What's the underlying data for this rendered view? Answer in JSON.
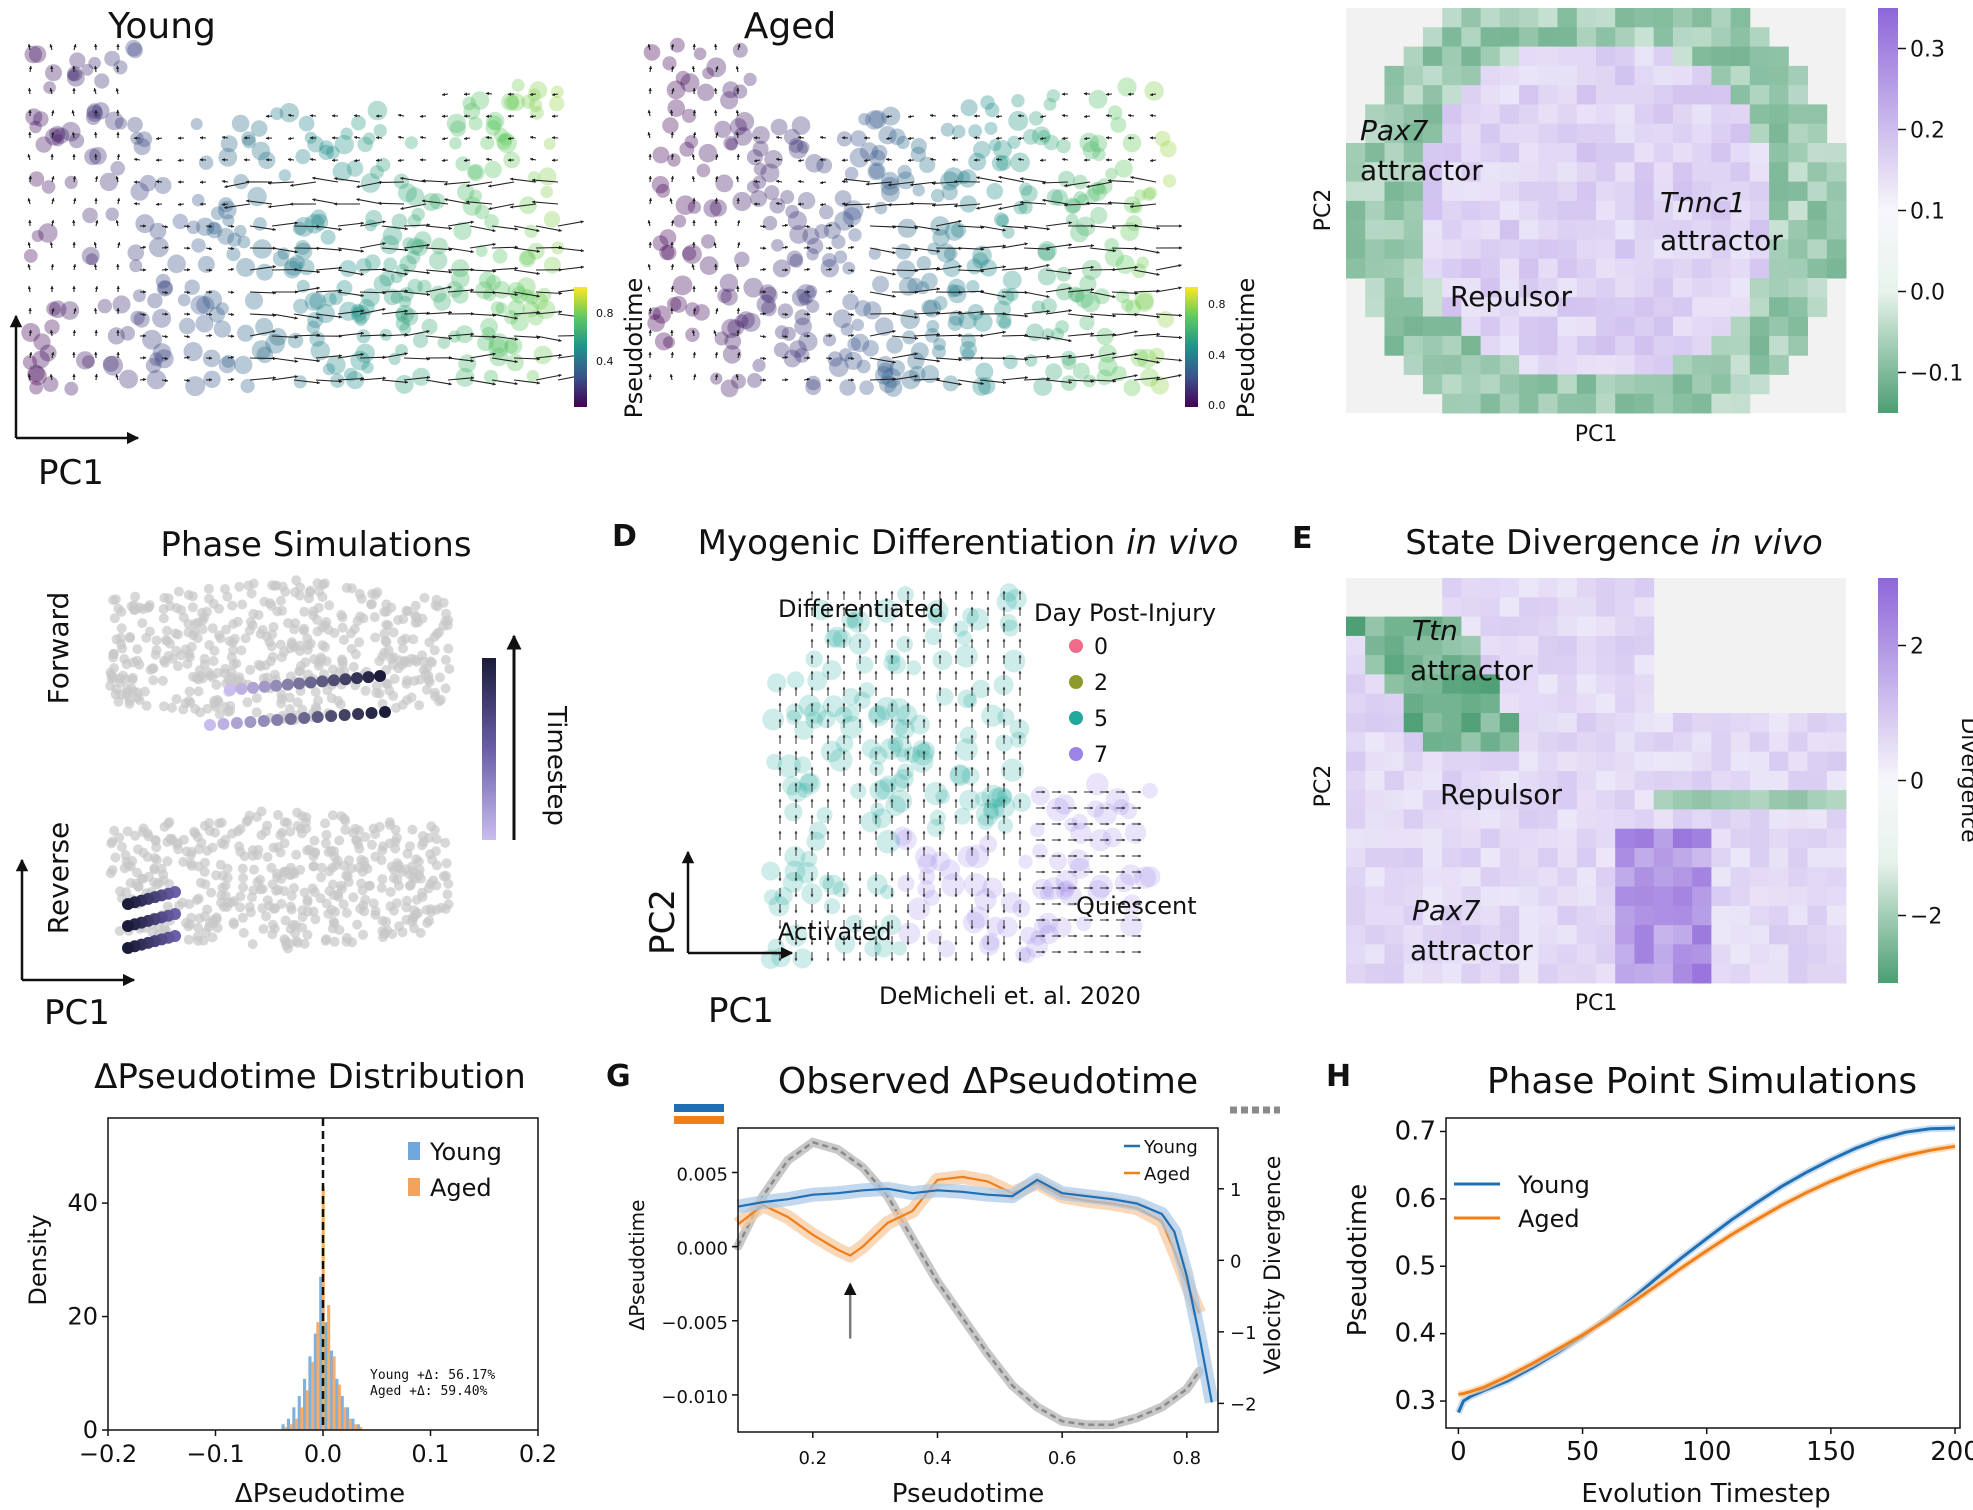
{
  "panel_letters": {
    "d": "D",
    "e": "E",
    "g": "G",
    "h": "H"
  },
  "pca_axes": {
    "pc1": "PC1",
    "pc2": "PC2"
  },
  "colorbar_label": "Pseudotime",
  "colors": {
    "purple": "#8e66d9",
    "green": "#4c9e72",
    "blue": "#1f6fb4",
    "orange": "#f07f18",
    "grey": "#7a7a7a",
    "viridis": [
      "#440154",
      "#3b528b",
      "#21918c",
      "#5ec962",
      "#fde725"
    ]
  },
  "chart_data": [
    {
      "type": "scatter",
      "id": "velocity-young",
      "title": "Young",
      "colorbar": {
        "label": "Pseudotime",
        "ticks": [
          "0.4",
          "0.8"
        ]
      },
      "xlabel": "PC1",
      "ylabel": "PC2"
    },
    {
      "type": "scatter",
      "id": "velocity-aged",
      "title": "Aged",
      "colorbar": {
        "label": "Pseudotime",
        "ticks": [
          "0.0",
          "0.4",
          "0.8"
        ]
      },
      "xlabel": "PC1",
      "ylabel": "PC2"
    },
    {
      "type": "heatmap",
      "id": "divergence-top",
      "xlabel": "PC1",
      "ylabel": "PC2",
      "annotations": {
        "pax7": "Pax7",
        "pax7_sub": "attractor",
        "tnnc1": "Tnnc1",
        "tnnc1_sub": "attractor",
        "repulsor": "Repulsor"
      },
      "colorbar": {
        "ticks": [
          "0.3",
          "0.2",
          "0.1",
          "0.0",
          "−0.1"
        ],
        "range": [
          -0.1,
          0.3
        ]
      }
    },
    {
      "type": "scatter",
      "id": "phase-simulations",
      "title": "Phase Simulations",
      "row_labels": {
        "forward": "Forward",
        "reverse": "Reverse"
      },
      "colorbar": {
        "label": "Timestep"
      },
      "xlabel": "PC1",
      "ylabel": "PC2"
    },
    {
      "type": "scatter",
      "id": "myogenic-in-vivo",
      "title_main": "Myogenic Differentiation ",
      "title_italic": "in vivo",
      "legend_title": "Day Post-Injury",
      "legend": [
        {
          "label": "0",
          "color": "#f06a8a"
        },
        {
          "label": "2",
          "color": "#8f9a2a"
        },
        {
          "label": "5",
          "color": "#22a99c"
        },
        {
          "label": "7",
          "color": "#9b83e8"
        }
      ],
      "annotations": {
        "differentiated": "Differentiated",
        "activated": "Activated",
        "quiescent": "Quiescent"
      },
      "citation": "DeMicheli et. al. 2020",
      "xlabel": "PC1",
      "ylabel": "PC2"
    },
    {
      "type": "heatmap",
      "id": "state-divergence",
      "title_main": "State Divergence ",
      "title_italic": "in vivo",
      "annotations": {
        "ttn": "Ttn",
        "ttn_sub": "attractor",
        "repulsor": "Repulsor",
        "pax7": "Pax7",
        "pax7_sub": "attractor"
      },
      "colorbar": {
        "label": "Divergence",
        "ticks": [
          "2",
          "0",
          "−2"
        ],
        "range": [
          -3.5,
          3.5
        ]
      },
      "xlabel": "PC1",
      "ylabel": "PC2"
    },
    {
      "type": "bar",
      "id": "delta-pseudotime-distribution",
      "title": "ΔPseudotime Distribution",
      "xlabel": "ΔPseudotime",
      "ylabel": "Density",
      "xlim": [
        -0.2,
        0.2
      ],
      "ylim": [
        0,
        55
      ],
      "xticks": [
        "−0.2",
        "−0.1",
        "0.0",
        "0.1",
        "0.2"
      ],
      "yticks": [
        0,
        20,
        40
      ],
      "bin_centers": [
        -0.035,
        -0.03,
        -0.025,
        -0.02,
        -0.015,
        -0.01,
        -0.005,
        0.0,
        0.005,
        0.01,
        0.015,
        0.02,
        0.025,
        0.03,
        0.035
      ],
      "series": [
        {
          "name": "Young",
          "color": "#6fa8dc",
          "values": [
            1,
            2,
            4,
            6,
            9,
            13,
            17,
            27,
            19,
            14,
            9,
            6,
            4,
            2,
            1
          ]
        },
        {
          "name": "Aged",
          "color": "#f5a35a",
          "values": [
            0.5,
            1,
            2,
            4,
            7,
            12,
            19,
            43,
            22,
            13,
            8,
            4,
            2,
            1,
            0.5
          ]
        }
      ],
      "annotation": {
        "young": "Young +Δ: 56.17%",
        "aged": "Aged  +Δ: 59.40%"
      }
    },
    {
      "type": "line",
      "id": "observed-delta-pseudotime",
      "title": "Observed ΔPseudotime",
      "xlabel": "Pseudotime",
      "ylabel": "ΔPseudotime",
      "y2label": "Velocity Divergence",
      "xlim": [
        0.08,
        0.85
      ],
      "ylim": [
        -0.0125,
        0.008
      ],
      "y2lim": [
        -2.4,
        1.85
      ],
      "xticks": [
        "0.2",
        "0.4",
        "0.6",
        "0.8"
      ],
      "yticks": [
        "0.005",
        "0.000",
        "−0.005",
        "−0.010"
      ],
      "y2ticks": [
        "1",
        "0",
        "−1",
        "−2"
      ],
      "legend": [
        "Young",
        "Aged"
      ],
      "series": [
        {
          "name": "Young",
          "color": "#1f6fb4",
          "x": [
            0.08,
            0.12,
            0.16,
            0.2,
            0.24,
            0.28,
            0.32,
            0.36,
            0.4,
            0.44,
            0.48,
            0.52,
            0.56,
            0.6,
            0.64,
            0.68,
            0.72,
            0.76,
            0.78,
            0.8,
            0.82,
            0.84
          ],
          "y": [
            0.0027,
            0.003,
            0.0032,
            0.0035,
            0.0036,
            0.0038,
            0.0039,
            0.0036,
            0.0038,
            0.0037,
            0.0035,
            0.0034,
            0.0045,
            0.0036,
            0.0034,
            0.0032,
            0.0029,
            0.0022,
            0.001,
            -0.002,
            -0.006,
            -0.0105
          ]
        },
        {
          "name": "Aged",
          "color": "#f07f18",
          "x": [
            0.08,
            0.12,
            0.16,
            0.2,
            0.24,
            0.26,
            0.28,
            0.32,
            0.36,
            0.4,
            0.44,
            0.48,
            0.52,
            0.56,
            0.6,
            0.64,
            0.68,
            0.72,
            0.76,
            0.78,
            0.8,
            0.82
          ],
          "y": [
            0.0015,
            0.0028,
            0.002,
            0.0008,
            -0.0002,
            -0.0006,
            0.0,
            0.0016,
            0.0024,
            0.0045,
            0.0047,
            0.0044,
            0.0036,
            0.0043,
            0.0034,
            0.0031,
            0.0029,
            0.0026,
            0.0017,
            -0.0003,
            -0.0025,
            -0.0045
          ]
        },
        {
          "name": "Velocity Divergence",
          "color": "#8a8a8a",
          "x": [
            0.08,
            0.12,
            0.16,
            0.2,
            0.24,
            0.28,
            0.32,
            0.36,
            0.4,
            0.44,
            0.48,
            0.52,
            0.56,
            0.6,
            0.64,
            0.68,
            0.72,
            0.76,
            0.8,
            0.82
          ],
          "y": [
            0.2,
            0.9,
            1.4,
            1.65,
            1.55,
            1.3,
            0.9,
            0.3,
            -0.3,
            -0.8,
            -1.3,
            -1.75,
            -2.05,
            -2.25,
            -2.3,
            -2.3,
            -2.2,
            -2.05,
            -1.8,
            -1.55
          ]
        }
      ],
      "arrow_at": 0.26
    },
    {
      "type": "line",
      "id": "phase-point-simulations",
      "title": "Phase Point Simulations",
      "xlabel": "Evolution Timestep",
      "ylabel": "Pseudotime",
      "xlim": [
        -5,
        202
      ],
      "ylim": [
        0.26,
        0.72
      ],
      "xticks": [
        0,
        50,
        100,
        150,
        200
      ],
      "yticks": [
        "0.3",
        "0.4",
        "0.5",
        "0.6",
        "0.7"
      ],
      "series": [
        {
          "name": "Young",
          "color": "#1f6fb4",
          "x": [
            0,
            2,
            5,
            10,
            20,
            30,
            40,
            50,
            60,
            70,
            80,
            90,
            100,
            110,
            120,
            130,
            140,
            150,
            160,
            170,
            180,
            190,
            200
          ],
          "y": [
            0.283,
            0.3,
            0.307,
            0.315,
            0.33,
            0.35,
            0.372,
            0.396,
            0.423,
            0.452,
            0.483,
            0.513,
            0.541,
            0.569,
            0.594,
            0.618,
            0.639,
            0.658,
            0.675,
            0.689,
            0.699,
            0.704,
            0.705
          ]
        },
        {
          "name": "Aged",
          "color": "#f07f18",
          "x": [
            0,
            2,
            5,
            10,
            20,
            30,
            40,
            50,
            60,
            70,
            80,
            90,
            100,
            110,
            120,
            130,
            140,
            150,
            160,
            170,
            180,
            190,
            200
          ],
          "y": [
            0.31,
            0.311,
            0.314,
            0.32,
            0.337,
            0.356,
            0.377,
            0.398,
            0.421,
            0.446,
            0.472,
            0.498,
            0.523,
            0.547,
            0.569,
            0.59,
            0.609,
            0.626,
            0.641,
            0.654,
            0.664,
            0.672,
            0.678
          ]
        }
      ]
    }
  ]
}
